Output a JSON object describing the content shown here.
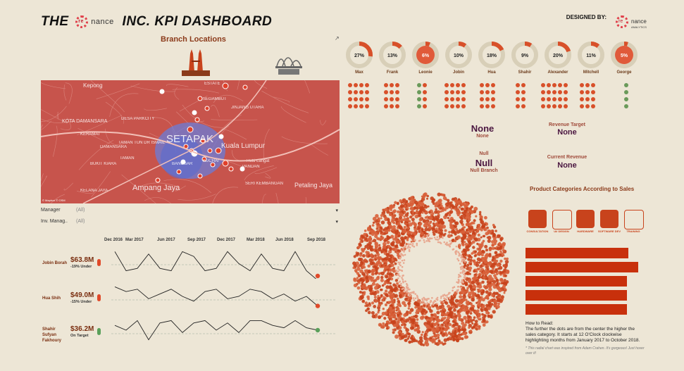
{
  "header": {
    "title_prefix": "THE",
    "logo_mark": "re",
    "logo_text": "nance",
    "title_suffix": "INC. KPI DASHBOARD",
    "designed_by": "DESIGNED BY:",
    "designer_text": "nance",
    "designer_sub": "ANALYTICS"
  },
  "branches": {
    "title": "Branch Locations",
    "kl_label": "KUALA LUMPUR BRANCH",
    "sydney_label": "SYDNEY BRANCH"
  },
  "map": {
    "labels": [
      "Kepong",
      "KOTA DAMANSARA",
      "DESA PARKCITY",
      "ESTATE",
      "SEGAMBUT",
      "JINJANG UTARA",
      "SETAPAK",
      "Kuala Lumpur",
      "Ampang Jaya",
      "Petaling Jaya",
      "Hulu Langat",
      "KERAMAT",
      "TAMAN TUN DR ISMAIL",
      "BUKIT KIARA",
      "BANGSAR",
      "PANDAN",
      "SERI KEMBANGAN",
      "KELANA JAYA",
      "DAMANSARA",
      "TAMAN",
      "KUCHAI"
    ],
    "attribution": "© Mapbox © OSM"
  },
  "filters": [
    {
      "label": "Manager",
      "value": "(All)"
    },
    {
      "label": "Inv. Manag..",
      "value": "(All)"
    }
  ],
  "timeline": {
    "ticks": [
      "Dec 2016",
      "Mar 2017",
      "Jun 2017",
      "Sep 2017",
      "Dec 2017",
      "Mar 2018",
      "Jun 2018",
      "Sep 2018"
    ],
    "rows": [
      {
        "name": "Jobin Borah",
        "amount": "$63.8M",
        "status": "-19% Under",
        "color": "#e04a2a"
      },
      {
        "name": "Hua Shih",
        "amount": "$49.0M",
        "status": "-15% Under",
        "color": "#e04a2a"
      },
      {
        "name": "Shahir Sufyan Fakhoury",
        "amount": "$36.2M",
        "status": "On Target",
        "color": "#5aa05a"
      }
    ]
  },
  "donuts": [
    {
      "name": "Max",
      "pct": "27%",
      "value": 0.27,
      "accent": false
    },
    {
      "name": "Frank",
      "pct": "13%",
      "value": 0.13,
      "accent": false
    },
    {
      "name": "Leonie",
      "pct": "6%",
      "value": 0.06,
      "accent": true
    },
    {
      "name": "Jobin",
      "pct": "10%",
      "value": 0.1,
      "accent": false
    },
    {
      "name": "Hua",
      "pct": "18%",
      "value": 0.18,
      "accent": false
    },
    {
      "name": "Shahir",
      "pct": "9%",
      "value": 0.09,
      "accent": false
    },
    {
      "name": "Alexander",
      "pct": "20%",
      "value": 0.2,
      "accent": false
    },
    {
      "name": "Mitchell",
      "pct": "11%",
      "value": 0.11,
      "accent": false
    },
    {
      "name": "George",
      "pct": "5%",
      "value": 0.05,
      "accent": true
    }
  ],
  "dot_cols": [
    {
      "cols": 4,
      "rows": 4,
      "green": 0
    },
    {
      "cols": 3,
      "rows": 4,
      "green": 0
    },
    {
      "cols": 2,
      "rows": 4,
      "green": 2
    },
    {
      "cols": 4,
      "rows": 4,
      "green": 0
    },
    {
      "cols": 3,
      "rows": 4,
      "green": 0
    },
    {
      "cols": 2,
      "rows": 4,
      "green": 0
    },
    {
      "cols": 5,
      "rows": 4,
      "green": 0
    },
    {
      "cols": 3,
      "rows": 4,
      "green": 0
    },
    {
      "cols": 1,
      "rows": 4,
      "green": 4
    }
  ],
  "kpis": {
    "none1": "None",
    "none1_sub": "None",
    "revenue_target_label": "Revenue Target",
    "revenue_target_value": "None",
    "null_label": "Null",
    "null_value": "Null",
    "null_sub": "Null Branch",
    "current_revenue_label": "Current Revenue",
    "current_revenue_value": "None"
  },
  "categories": {
    "title": "Product Categories According to Sales",
    "items": [
      "CONSULTATION",
      "UI/ DESIGN",
      "HARDWARE",
      "SOFTWARE DEV",
      "TRAINING"
    ],
    "bars": [
      0.83,
      0.91,
      0.82,
      0.82,
      0.82
    ]
  },
  "howto": {
    "title": "How to Read:",
    "body": "The further the dots are from the center the higher the sales category. It starts at 12 O'Clock clockwise highlighting months from January 2017 to October 2018.",
    "note": "* This radial chart was inspired from Adam Crahen. It's gorgeous! Just hover over it!"
  },
  "colors": {
    "accent": "#c8431c",
    "bg": "#ede6d6",
    "map": "#c7544c",
    "green": "#5aa05a"
  }
}
